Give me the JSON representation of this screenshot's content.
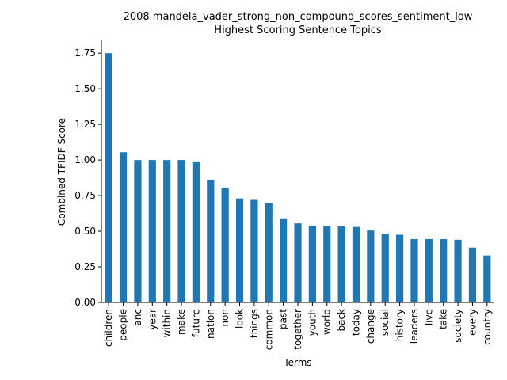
{
  "chart_data": {
    "type": "bar",
    "title_line1": "2008 mandela_vader_strong_non_compound_scores_sentiment_low",
    "title_line2": "Highest Scoring Sentence Topics",
    "xlabel": "Terms",
    "ylabel": "Combined TFIDF Score",
    "ylim": [
      0,
      1.84
    ],
    "yticks": [
      "0.00",
      "0.25",
      "0.50",
      "0.75",
      "1.00",
      "1.25",
      "1.50",
      "1.75"
    ],
    "ytick_values": [
      0,
      0.25,
      0.5,
      0.75,
      1.0,
      1.25,
      1.5,
      1.75
    ],
    "categories": [
      "children",
      "people",
      "anc",
      "year",
      "within",
      "make",
      "future",
      "nation",
      "non",
      "look",
      "things",
      "common",
      "past",
      "together",
      "youth",
      "world",
      "back",
      "today",
      "change",
      "social",
      "history",
      "leaders",
      "live",
      "take",
      "society",
      "every",
      "country"
    ],
    "values": [
      1.75,
      1.055,
      1.0,
      1.0,
      1.0,
      1.0,
      0.985,
      0.86,
      0.805,
      0.73,
      0.72,
      0.7,
      0.585,
      0.555,
      0.54,
      0.535,
      0.535,
      0.53,
      0.505,
      0.48,
      0.475,
      0.445,
      0.445,
      0.445,
      0.44,
      0.385,
      0.33
    ],
    "bar_color": "#1f77b4",
    "grid": false,
    "legend": "none"
  }
}
